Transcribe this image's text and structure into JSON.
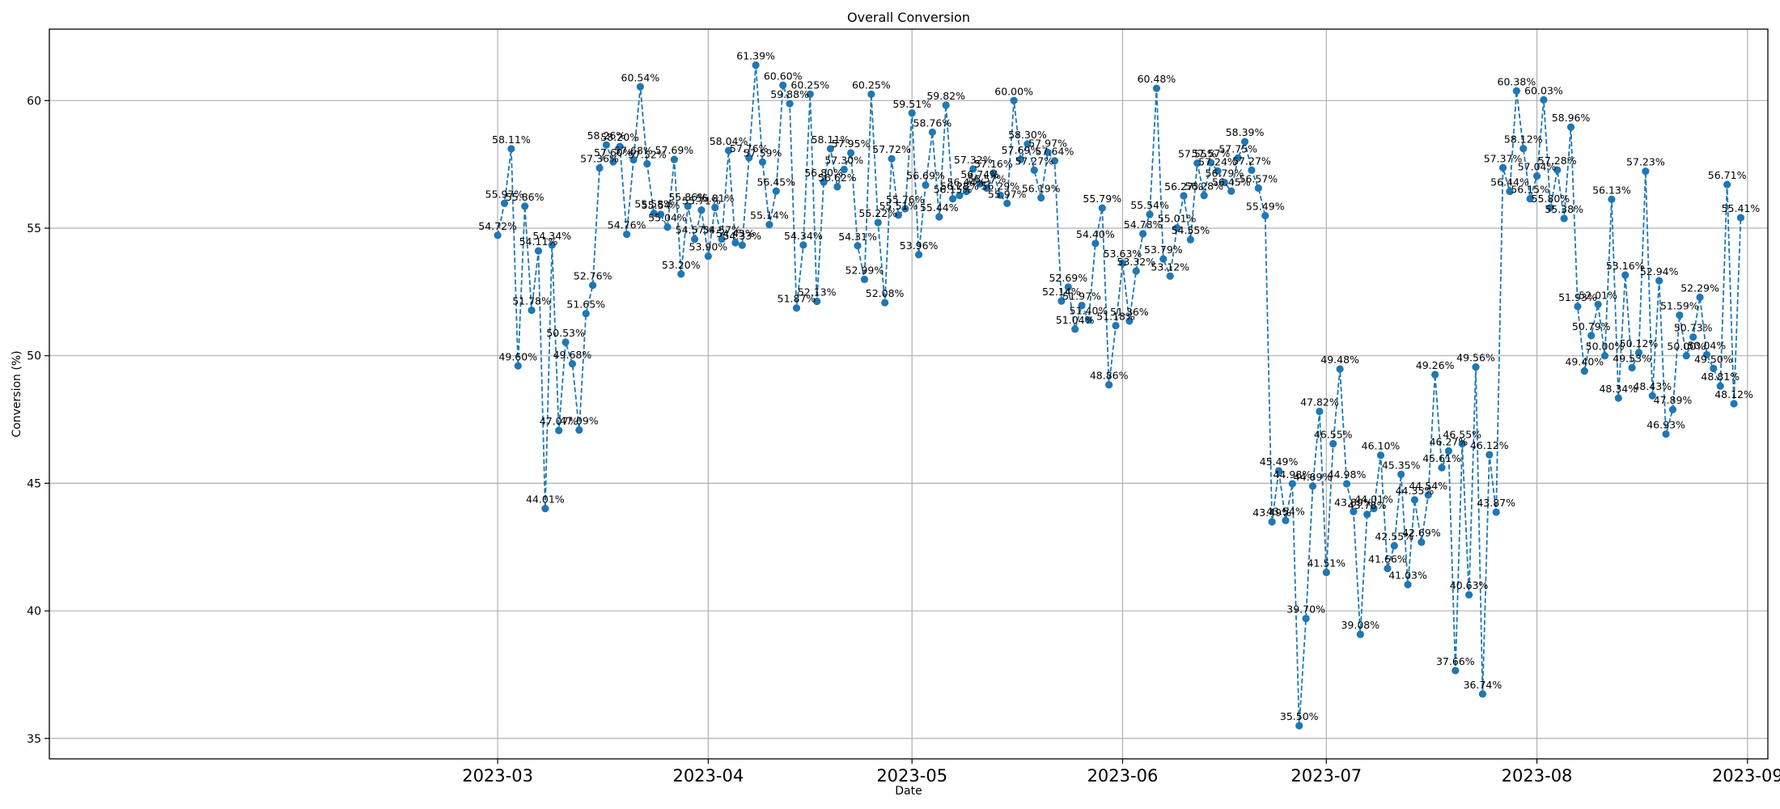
{
  "chart_data": {
    "type": "line",
    "title": "Overall Conversion",
    "xlabel": "Date",
    "ylabel": "Conversion (%)",
    "x_start": "2023-03-01",
    "x_end": "2023-08-31",
    "xlim": [
      "2022-12-25",
      "2023-09-04"
    ],
    "ylim": [
      34.2,
      62.8
    ],
    "yticks": [
      35,
      40,
      45,
      50,
      55,
      60
    ],
    "xticks": [
      {
        "date": "2023-03-01",
        "label": "2023-03"
      },
      {
        "date": "2023-04-01",
        "label": "2023-04"
      },
      {
        "date": "2023-05-01",
        "label": "2023-05"
      },
      {
        "date": "2023-06-01",
        "label": "2023-06"
      },
      {
        "date": "2023-07-01",
        "label": "2023-07"
      },
      {
        "date": "2023-08-01",
        "label": "2023-08"
      },
      {
        "date": "2023-09-01",
        "label": "2023-09"
      }
    ],
    "grid": true,
    "line_style": "dashed",
    "marker": "circle",
    "color": "#1f77b4",
    "series": [
      {
        "values": [
          54.72,
          55.97,
          58.11,
          49.6,
          55.86,
          51.78,
          54.11,
          44.01,
          54.34,
          47.07,
          50.53,
          49.68,
          47.09,
          51.65,
          52.76,
          57.36,
          58.26,
          57.6,
          58.2,
          54.76,
          57.68,
          60.54,
          57.52,
          55.58,
          55.54,
          55.04,
          57.69,
          53.2,
          55.86,
          54.57,
          55.71,
          53.9,
          55.81,
          54.57,
          58.04,
          54.43,
          54.33,
          57.76,
          61.39,
          57.59,
          55.14,
          56.45,
          60.6,
          59.88,
          51.87,
          54.34,
          60.25,
          52.13,
          56.8,
          58.11,
          56.62,
          57.3,
          57.95,
          54.31,
          52.99,
          60.25,
          55.22,
          52.08,
          57.72,
          55.51,
          55.76,
          59.51,
          53.96,
          56.69,
          58.76,
          55.44,
          59.82,
          56.15,
          56.28,
          56.44,
          57.32,
          56.74,
          56.57,
          57.16,
          56.29,
          55.97,
          60.0,
          57.69,
          58.3,
          57.27,
          56.19,
          57.97,
          57.64,
          52.14,
          52.69,
          51.04,
          51.97,
          51.4,
          54.4,
          55.79,
          48.86,
          51.18,
          53.63,
          51.36,
          53.32,
          54.78,
          55.54,
          60.48,
          53.79,
          53.12,
          55.01,
          56.27,
          54.55,
          57.55,
          56.28,
          57.57,
          57.24,
          56.79,
          56.45,
          57.75,
          58.39,
          57.27,
          56.57,
          55.49,
          43.49,
          45.49,
          43.54,
          44.98,
          35.5,
          39.7,
          44.89,
          47.82,
          41.51,
          46.55,
          49.48,
          44.98,
          43.89,
          39.08,
          43.78,
          44.01,
          46.1,
          41.66,
          42.55,
          45.35,
          41.03,
          44.35,
          42.69,
          44.54,
          49.26,
          45.61,
          46.27,
          37.66,
          46.55,
          40.63,
          49.56,
          36.74,
          46.12,
          43.87,
          57.37,
          56.44,
          60.38,
          58.12,
          56.15,
          57.04,
          60.03,
          55.8,
          57.28,
          55.38,
          58.96,
          51.93,
          49.4,
          50.79,
          52.01,
          50.0,
          56.13,
          48.34,
          53.16,
          49.53,
          50.12,
          57.23,
          48.43,
          52.94,
          46.93,
          47.89,
          51.59,
          50.0,
          50.73,
          52.29,
          50.04,
          49.5,
          48.81,
          56.71,
          48.12,
          55.41
        ]
      }
    ],
    "point_labels": [
      "54.72%",
      "55.97%",
      "58.11%",
      "49.60%",
      "55.86%",
      "51.78%",
      "54.11%",
      "44.01%",
      "54.34%",
      "47.07%",
      "50.53%",
      "49.68%",
      "47.09%",
      "51.65%",
      "52.76%",
      "57.36%",
      "58.26%",
      "57.60%",
      "58.20%",
      "54.76%",
      "57.68%",
      "60.54%",
      "57.52%",
      "55.58%",
      "55.54%",
      "55.04%",
      "57.69%",
      "53.20%",
      "55.86%",
      "54.57%",
      "55.71%",
      "53.90%",
      "55.81%",
      "54.57%",
      "58.04%",
      "54.43%",
      "54.33%",
      "57.76%",
      "61.39%",
      "57.59%",
      "55.14%",
      "56.45%",
      "60.60%",
      "59.88%",
      "51.87%",
      "54.34%",
      "60.25%",
      "52.13%",
      "56.80%",
      "58.11%",
      "56.62%",
      "57.30%",
      "57.95%",
      "54.31%",
      "52.99%",
      "60.25%",
      "55.22%",
      "52.08%",
      "57.72%",
      "55.51%",
      "55.76%",
      "59.51%",
      "53.96%",
      "56.69%",
      "58.76%",
      "55.44%",
      "59.82%",
      "56.15%",
      "56.28%",
      "56.44%",
      "57.32%",
      "56.74%",
      "56.57%",
      "57.16%",
      "56.29%",
      "55.97%",
      "60.00%",
      "57.69%",
      "58.30%",
      "57.27%",
      "56.19%",
      "57.97%",
      "57.64%",
      "52.14%",
      "52.69%",
      "51.04%",
      "51.97%",
      "51.40%",
      "54.40%",
      "55.79%",
      "48.86%",
      "51.18%",
      "53.63%",
      "51.36%",
      "53.32%",
      "54.78%",
      "55.54%",
      "60.48%",
      "53.79%",
      "53.12%",
      "55.01%",
      "56.27%",
      "54.55%",
      "57.55%",
      "56.28%",
      "57.57%",
      "57.24%",
      "56.79%",
      "56.45%",
      "57.75%",
      "58.39%",
      "57.27%",
      "56.57%",
      "55.49%",
      "43.49%",
      "45.49%",
      "43.54%",
      "44.98%",
      "35.50%",
      "39.70%",
      "44.89%",
      "47.82%",
      "41.51%",
      "46.55%",
      "49.48%",
      "44.98%",
      "43.89%",
      "39.08%",
      "43.78%",
      "44.01%",
      "46.10%",
      "41.66%",
      "42.55%",
      "45.35%",
      "41.03%",
      "44.35%",
      "42.69%",
      "44.54%",
      "49.26%",
      "45.61%",
      "46.27%",
      "37.66%",
      "46.55%",
      "40.63%",
      "49.56%",
      "36.74%",
      "46.12%",
      "43.87%",
      "57.37%",
      "56.44%",
      "60.38%",
      "58.12%",
      "56.15%",
      "57.04%",
      "60.03%",
      "55.80%",
      "57.28%",
      "55.38%",
      "58.96%",
      "51.93%",
      "49.40%",
      "50.79%",
      "52.01%",
      "50.00%",
      "56.13%",
      "48.34%",
      "53.16%",
      "49.53%",
      "50.12%",
      "57.23%",
      "48.43%",
      "52.94%",
      "46.93%",
      "47.89%",
      "51.59%",
      "50.00%",
      "50.73%",
      "52.29%",
      "50.04%",
      "49.50%",
      "48.81%",
      "56.71%",
      "48.12%",
      "55.41%"
    ]
  }
}
